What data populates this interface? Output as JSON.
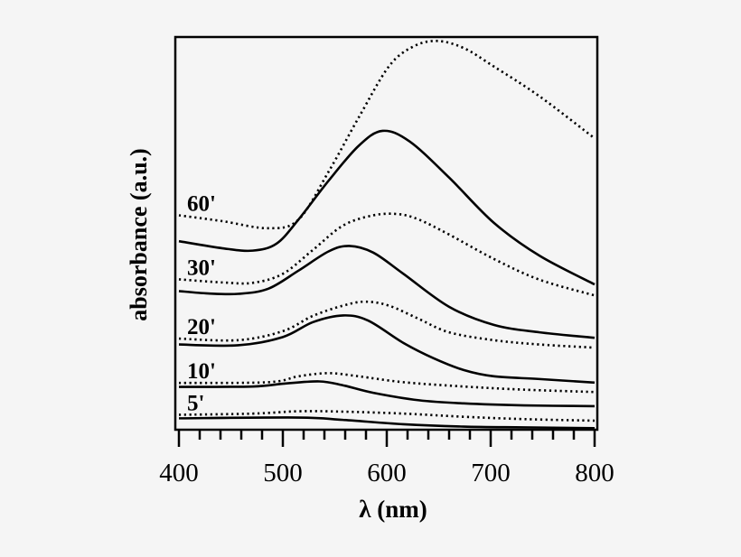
{
  "chart_data": {
    "type": "line",
    "title": "",
    "xlabel": "λ (nm)",
    "ylabel": "absorbance (a.u.)",
    "xlim": [
      400,
      800
    ],
    "ylim": [
      0,
      100
    ],
    "x_ticks": [
      400,
      500,
      600,
      700,
      800
    ],
    "x_minor_tick_step": 20,
    "y_ticks": [],
    "grid": false,
    "legend": "none",
    "curve_color": "#000000",
    "labels": [
      {
        "text": "60'",
        "curve": 0
      },
      {
        "text": "30'",
        "curve": 2
      },
      {
        "text": "20'",
        "curve": 4
      },
      {
        "text": "10'",
        "curve": 6
      },
      {
        "text": "5'",
        "curve": 8
      }
    ],
    "series": [
      {
        "style": "dotted",
        "points": [
          [
            400,
            54.6
          ],
          [
            442,
            53.1
          ],
          [
            486,
            51.3
          ],
          [
            515,
            53.5
          ],
          [
            544,
            65.7
          ],
          [
            573,
            79.5
          ],
          [
            602,
            92.5
          ],
          [
            625,
            97.5
          ],
          [
            648,
            99.0
          ],
          [
            674,
            97.2
          ],
          [
            703,
            92.5
          ],
          [
            747,
            84.9
          ],
          [
            800,
            74.2
          ]
        ]
      },
      {
        "style": "solid",
        "points": [
          [
            400,
            48.0
          ],
          [
            442,
            46.2
          ],
          [
            471,
            45.6
          ],
          [
            494,
            47.4
          ],
          [
            515,
            53.5
          ],
          [
            544,
            63.4
          ],
          [
            573,
            72.3
          ],
          [
            596,
            76.1
          ],
          [
            622,
            73.4
          ],
          [
            660,
            64.2
          ],
          [
            703,
            52.7
          ],
          [
            747,
            44.3
          ],
          [
            800,
            37.0
          ]
        ]
      },
      {
        "style": "dotted",
        "points": [
          [
            400,
            38.3
          ],
          [
            442,
            37.5
          ],
          [
            471,
            37.4
          ],
          [
            500,
            39.7
          ],
          [
            529,
            45.8
          ],
          [
            558,
            52.0
          ],
          [
            587,
            54.6
          ],
          [
            611,
            54.9
          ],
          [
            631,
            53.5
          ],
          [
            660,
            49.7
          ],
          [
            703,
            43.5
          ],
          [
            747,
            38.2
          ],
          [
            800,
            34.2
          ]
        ]
      },
      {
        "style": "solid",
        "points": [
          [
            400,
            35.3
          ],
          [
            428,
            34.7
          ],
          [
            457,
            34.6
          ],
          [
            486,
            35.9
          ],
          [
            515,
            40.5
          ],
          [
            544,
            45.4
          ],
          [
            564,
            46.8
          ],
          [
            587,
            45.1
          ],
          [
            616,
            39.7
          ],
          [
            660,
            31.3
          ],
          [
            703,
            26.7
          ],
          [
            747,
            24.8
          ],
          [
            800,
            23.4
          ]
        ]
      },
      {
        "style": "dotted",
        "points": [
          [
            400,
            23.2
          ],
          [
            457,
            22.8
          ],
          [
            500,
            25.1
          ],
          [
            529,
            29.0
          ],
          [
            558,
            31.6
          ],
          [
            579,
            32.6
          ],
          [
            602,
            31.6
          ],
          [
            631,
            28.2
          ],
          [
            660,
            24.8
          ],
          [
            703,
            22.8
          ],
          [
            747,
            21.7
          ],
          [
            800,
            20.9
          ]
        ]
      },
      {
        "style": "solid",
        "points": [
          [
            400,
            21.7
          ],
          [
            457,
            21.5
          ],
          [
            500,
            23.6
          ],
          [
            529,
            27.4
          ],
          [
            558,
            29.1
          ],
          [
            582,
            27.8
          ],
          [
            616,
            22.1
          ],
          [
            645,
            18.2
          ],
          [
            674,
            15.2
          ],
          [
            703,
            13.6
          ],
          [
            747,
            12.9
          ],
          [
            800,
            12.0
          ]
        ]
      },
      {
        "style": "dotted",
        "points": [
          [
            400,
            11.9
          ],
          [
            486,
            12.1
          ],
          [
            515,
            13.6
          ],
          [
            544,
            14.4
          ],
          [
            573,
            13.6
          ],
          [
            616,
            12.1
          ],
          [
            674,
            11.0
          ],
          [
            732,
            10.2
          ],
          [
            800,
            9.6
          ]
        ]
      },
      {
        "style": "solid",
        "points": [
          [
            400,
            10.9
          ],
          [
            471,
            11.0
          ],
          [
            500,
            11.7
          ],
          [
            535,
            12.3
          ],
          [
            558,
            11.3
          ],
          [
            587,
            9.4
          ],
          [
            631,
            7.5
          ],
          [
            674,
            6.7
          ],
          [
            732,
            6.2
          ],
          [
            800,
            6.0
          ]
        ]
      },
      {
        "style": "dotted",
        "points": [
          [
            400,
            3.8
          ],
          [
            471,
            4.1
          ],
          [
            515,
            4.7
          ],
          [
            558,
            4.6
          ],
          [
            616,
            4.1
          ],
          [
            674,
            3.3
          ],
          [
            732,
            2.7
          ],
          [
            800,
            2.3
          ]
        ]
      },
      {
        "style": "solid",
        "points": [
          [
            400,
            2.9
          ],
          [
            515,
            3.1
          ],
          [
            558,
            2.5
          ],
          [
            616,
            1.4
          ],
          [
            674,
            0.8
          ],
          [
            732,
            0.6
          ],
          [
            800,
            0.4
          ]
        ]
      }
    ]
  }
}
